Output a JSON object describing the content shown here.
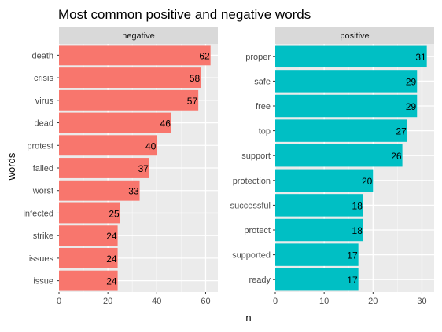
{
  "chart_data": {
    "type": "bar",
    "orientation": "horizontal",
    "title": "Most common positive and negative words",
    "xlabel": "n",
    "ylabel": "words",
    "grid": true,
    "legend": "none",
    "panels": [
      {
        "name": "negative",
        "color": "#F8766D",
        "xlim": [
          0,
          65
        ],
        "xticks": [
          0,
          20,
          40,
          60
        ],
        "categories": [
          "death",
          "crisis",
          "virus",
          "dead",
          "protest",
          "failed",
          "worst",
          "infected",
          "strike",
          "issues",
          "issue"
        ],
        "values": [
          62,
          58,
          57,
          46,
          40,
          37,
          33,
          25,
          24,
          24,
          24
        ]
      },
      {
        "name": "positive",
        "color": "#00BFC4",
        "xlim": [
          0,
          32.5
        ],
        "xticks": [
          0,
          10,
          20,
          30
        ],
        "categories": [
          "proper",
          "safe",
          "free",
          "top",
          "support",
          "protection",
          "successful",
          "protect",
          "supported",
          "ready"
        ],
        "values": [
          31,
          29,
          29,
          27,
          26,
          20,
          18,
          18,
          17,
          17
        ]
      }
    ]
  }
}
